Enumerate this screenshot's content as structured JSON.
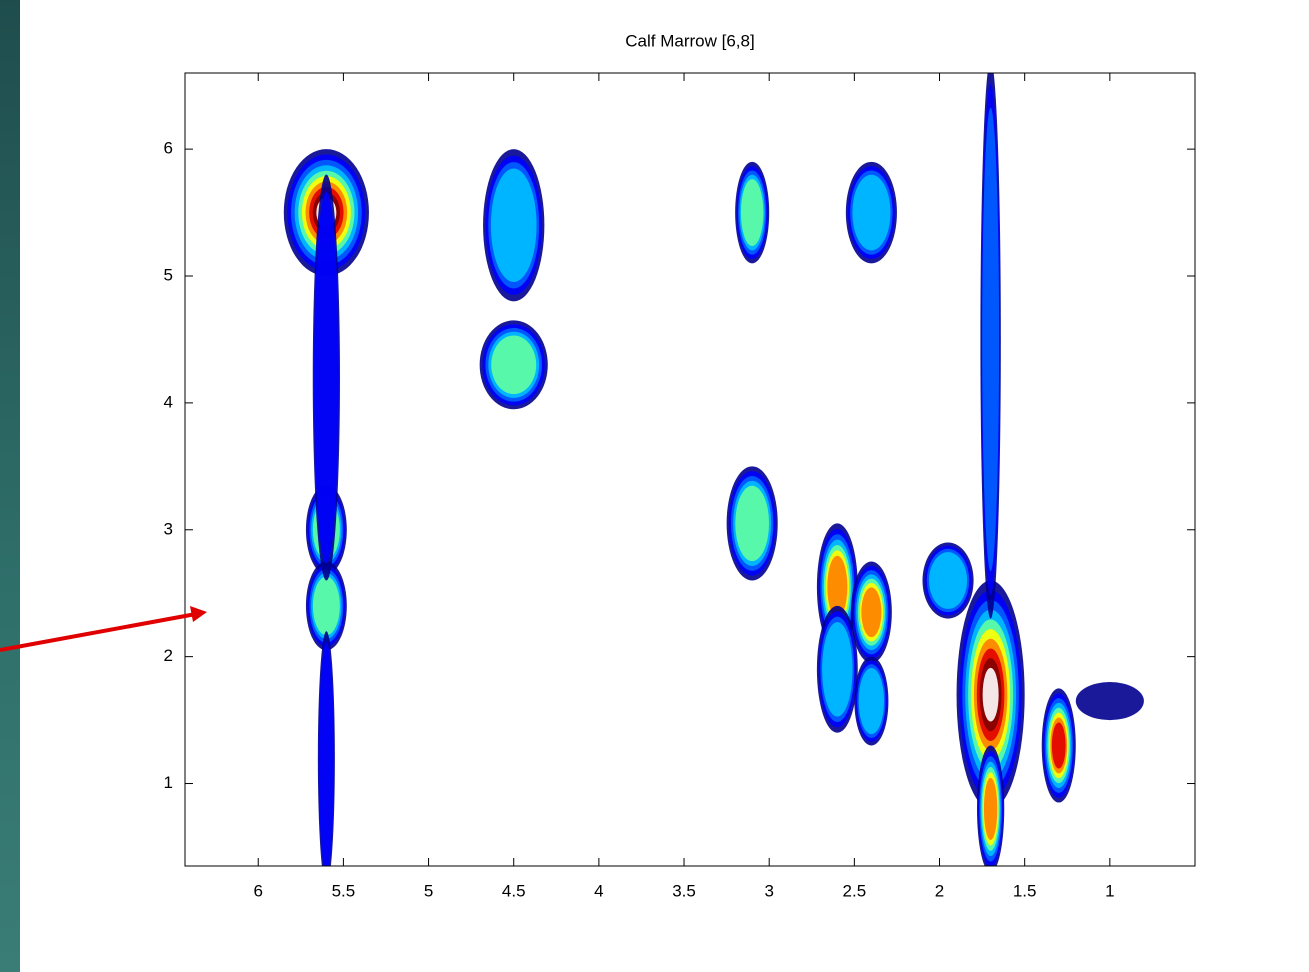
{
  "chart_data": {
    "type": "contour",
    "title": "Calf Marrow [6,8]",
    "xlim": [
      6.43,
      0.5
    ],
    "ylim": [
      0.35,
      6.6
    ],
    "xticks": [
      6,
      5.5,
      5,
      4.5,
      4,
      3.5,
      3,
      2.5,
      2,
      1.5,
      1
    ],
    "yticks": [
      1,
      2,
      3,
      4,
      5,
      6
    ],
    "colormap": [
      "#00008f",
      "#0000ff",
      "#0060ff",
      "#00c0ff",
      "#60ffa0",
      "#ffff00",
      "#ff8000",
      "#e00000",
      "#800000",
      "#ffffff"
    ],
    "peaks": {
      "x": [
        5.6,
        5.6,
        5.6,
        5.6,
        5.6,
        4.5,
        4.5,
        3.1,
        2.4,
        3.1,
        2.6,
        2.4,
        2.4,
        2.6,
        1.7,
        1.7,
        1.7,
        1.95,
        1.3,
        1.0
      ],
      "y": [
        5.5,
        3.0,
        2.4,
        4.2,
        1.2,
        5.4,
        4.3,
        5.5,
        5.5,
        3.05,
        2.55,
        2.35,
        1.65,
        1.9,
        1.7,
        4.5,
        0.8,
        2.6,
        1.3,
        1.65
      ],
      "x_width": [
        0.25,
        0.12,
        0.12,
        0.08,
        0.05,
        0.18,
        0.2,
        0.1,
        0.15,
        0.15,
        0.12,
        0.12,
        0.1,
        0.12,
        0.2,
        0.06,
        0.08,
        0.15,
        0.1,
        0.2
      ],
      "y_width": [
        0.5,
        0.35,
        0.35,
        1.6,
        1.0,
        0.6,
        0.35,
        0.4,
        0.4,
        0.45,
        0.5,
        0.4,
        0.35,
        0.5,
        0.9,
        2.2,
        0.5,
        0.3,
        0.45,
        0.15
      ],
      "intensity": [
        1.0,
        0.45,
        0.45,
        0.2,
        0.15,
        0.4,
        0.45,
        0.45,
        0.4,
        0.45,
        0.7,
        0.7,
        0.4,
        0.4,
        1.0,
        0.3,
        0.7,
        0.4,
        0.75,
        0.1
      ]
    }
  }
}
